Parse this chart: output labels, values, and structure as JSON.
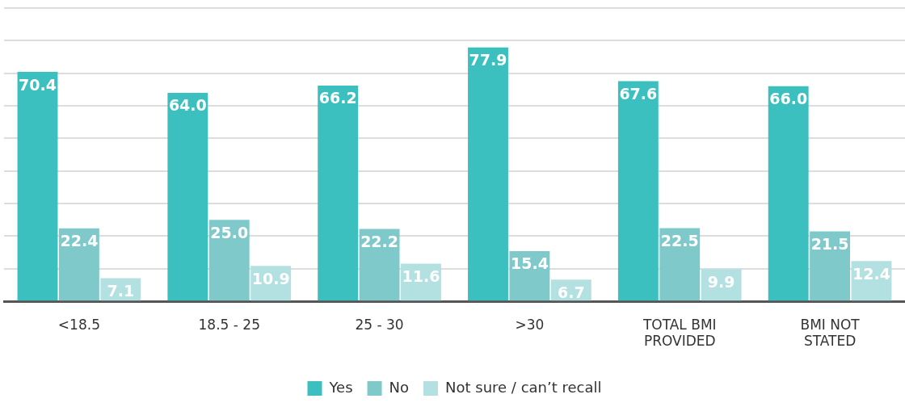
{
  "chart_data": {
    "type": "bar",
    "categories": [
      "<18.5",
      "18.5 - 25",
      "25 - 30",
      ">30",
      "TOTAL BMI PROVIDED",
      "BMI NOT STATED"
    ],
    "series": [
      {
        "name": "Yes",
        "color": "#3bbfbf",
        "values": [
          70.4,
          64.0,
          66.2,
          77.9,
          67.6,
          66.0
        ],
        "value_labels": [
          "70.4",
          "64.0",
          "66.2",
          "77.9",
          "67.6",
          "66.0"
        ]
      },
      {
        "name": "No",
        "color": "#80c9cb",
        "values": [
          22.4,
          25.0,
          22.2,
          15.4,
          22.5,
          21.5
        ],
        "value_labels": [
          "22.4",
          "25.0",
          "22.2",
          "15.4",
          "22.5",
          "21.5"
        ]
      },
      {
        "name": "Not sure / can’t recall",
        "color": "#b3e0e0",
        "values": [
          7.1,
          10.9,
          11.6,
          6.7,
          9.9,
          12.4
        ],
        "value_labels": [
          "7.1",
          "10.9",
          "11.6",
          "6.7",
          "9.9",
          "12.4"
        ]
      }
    ],
    "ylim": [
      0,
      90
    ],
    "yticks": [
      {
        "value": 0,
        "label": null
      },
      {
        "value": 10,
        "label": null
      },
      {
        "value": 20,
        "label": null
      },
      {
        "value": 30,
        "label": null
      },
      {
        "value": 40,
        "label": null
      },
      {
        "value": 50,
        "label": null
      },
      {
        "value": 60,
        "label": null
      },
      {
        "value": 70,
        "label": null
      },
      {
        "value": 80,
        "label": null
      },
      {
        "value": 90,
        "label": null
      }
    ],
    "grid": "y",
    "legend": "bottom",
    "tick_labels": "x"
  }
}
